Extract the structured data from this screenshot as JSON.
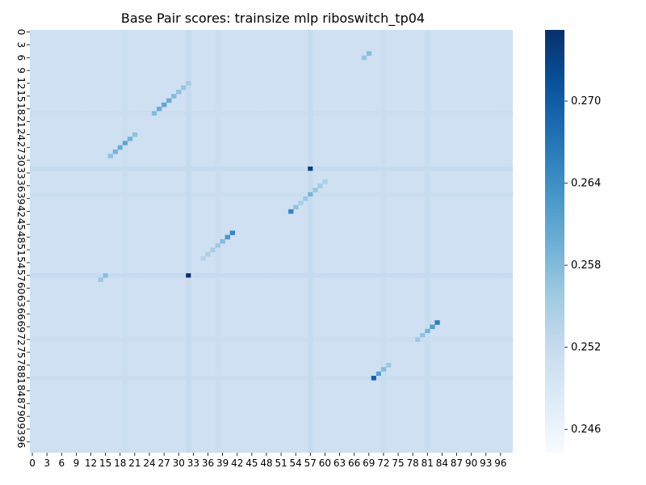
{
  "chart_data": {
    "type": "heatmap",
    "title": "Base Pair scores: trainsize mlp riboswitch_tp04",
    "xlabel": "",
    "ylabel": "",
    "n": 99,
    "x_ticks": [
      0,
      3,
      6,
      9,
      12,
      15,
      18,
      21,
      24,
      27,
      30,
      33,
      36,
      39,
      42,
      45,
      48,
      51,
      54,
      57,
      60,
      63,
      66,
      69,
      72,
      75,
      78,
      81,
      84,
      87,
      90,
      93,
      96
    ],
    "y_ticks": [
      0,
      3,
      6,
      9,
      12,
      15,
      18,
      21,
      24,
      27,
      30,
      33,
      36,
      39,
      42,
      45,
      48,
      51,
      54,
      57,
      60,
      63,
      66,
      69,
      72,
      75,
      78,
      81,
      84,
      87,
      90,
      93,
      96
    ],
    "background_value": 0.2508,
    "color_range": [
      0.2443,
      0.2752
    ],
    "colorbar_ticks": [
      0.246,
      0.252,
      0.258,
      0.264,
      0.27
    ],
    "colorbar_tick_labels": [
      "0.246",
      "0.252",
      "0.258",
      "0.264",
      "0.270"
    ],
    "colormap": {
      "low": "#f7fbff",
      "mid": "#c6dbef",
      "high": "#08306b"
    },
    "helices": [
      {
        "cells": [
          [
            5,
            69
          ],
          [
            6,
            68
          ]
        ],
        "values": [
          0.2575,
          0.2565
        ]
      },
      {
        "cells": [
          [
            12,
            32
          ],
          [
            13,
            31
          ],
          [
            14,
            30
          ],
          [
            15,
            29
          ],
          [
            16,
            28
          ],
          [
            17,
            27
          ],
          [
            18,
            26
          ],
          [
            19,
            25
          ]
        ],
        "values": [
          0.2555,
          0.2565,
          0.257,
          0.258,
          0.26,
          0.261,
          0.26,
          0.258
        ]
      },
      {
        "cells": [
          [
            24,
            21
          ],
          [
            25,
            20
          ],
          [
            26,
            19
          ],
          [
            27,
            18
          ],
          [
            28,
            17
          ],
          [
            29,
            16
          ]
        ],
        "values": [
          0.257,
          0.259,
          0.261,
          0.26,
          0.259,
          0.257
        ]
      },
      {
        "cells": [
          [
            35,
            60
          ],
          [
            36,
            59
          ],
          [
            37,
            58
          ],
          [
            38,
            57
          ],
          [
            39,
            56
          ],
          [
            40,
            55
          ],
          [
            41,
            54
          ],
          [
            42,
            53
          ]
        ],
        "values": [
          0.2545,
          0.2555,
          0.2565,
          0.259,
          0.256,
          0.255,
          0.257,
          0.265
        ]
      },
      {
        "cells": [
          [
            47,
            41
          ],
          [
            48,
            40
          ],
          [
            49,
            39
          ],
          [
            50,
            38
          ],
          [
            51,
            37
          ],
          [
            52,
            36
          ],
          [
            53,
            35
          ]
        ],
        "values": [
          0.265,
          0.263,
          0.258,
          0.256,
          0.255,
          0.2545,
          0.254
        ]
      },
      {
        "cells": [
          [
            57,
            15
          ],
          [
            58,
            14
          ]
        ],
        "values": [
          0.2575,
          0.256
        ]
      },
      {
        "cells": [
          [
            68,
            83
          ],
          [
            69,
            82
          ],
          [
            70,
            81
          ],
          [
            71,
            80
          ],
          [
            72,
            79
          ]
        ],
        "values": [
          0.266,
          0.262,
          0.259,
          0.257,
          0.256
        ]
      },
      {
        "cells": [
          [
            78,
            73
          ],
          [
            79,
            72
          ],
          [
            80,
            71
          ],
          [
            81,
            70
          ]
        ],
        "values": [
          0.256,
          0.258,
          0.262,
          0.27
        ]
      }
    ],
    "hotspots": [
      {
        "cells": [
          [
            57,
            32
          ],
          [
            32,
            57
          ]
        ],
        "values": [
          0.2752,
          0.2735
        ]
      },
      {
        "cells": [
          [
            32,
            57
          ],
          [
            57,
            32
          ]
        ],
        "values": [
          0.2735,
          0.2752
        ]
      }
    ],
    "stripes": [
      {
        "row_col": 32,
        "value": 0.252
      },
      {
        "row_col": 57,
        "value": 0.252
      },
      {
        "row_col": 19,
        "value": 0.2514
      },
      {
        "row_col": 38,
        "value": 0.2514
      },
      {
        "row_col": 72,
        "value": 0.2514
      },
      {
        "row_col": 81,
        "value": 0.2516
      }
    ]
  }
}
